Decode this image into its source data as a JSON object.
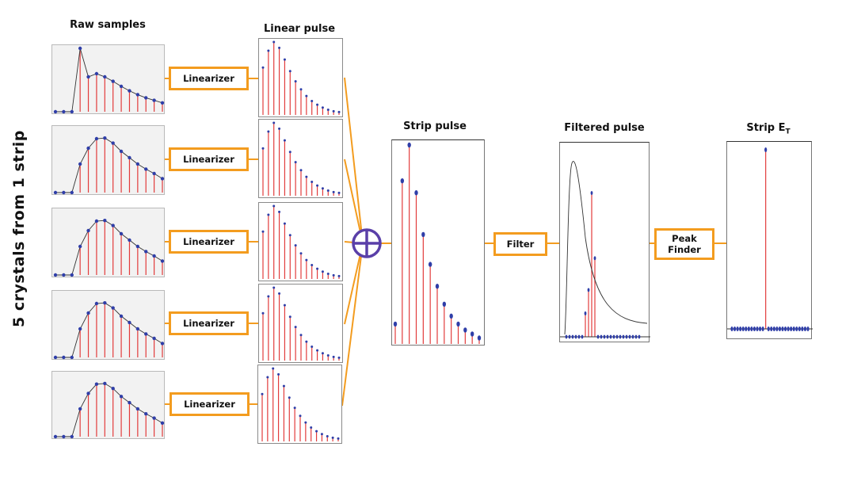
{
  "side_label": "5 crystals from 1 strip",
  "stages": {
    "raw": "Raw samples",
    "linear": "Linear pulse",
    "strip": "Strip pulse",
    "filtered": "Filtered pulse",
    "strip_et": "Strip E",
    "strip_et_sub": "T"
  },
  "blocks": {
    "linearizer": "Linearizer",
    "filter": "Filter",
    "peak_finder": "Peak\nFinder"
  },
  "colors": {
    "connector": "#f39c1f",
    "stem": "#e23b3b",
    "marker": "#2f3ea8",
    "curve": "#333333",
    "adder": "#5a3fa8"
  },
  "icons": {
    "adder": "circle-plus-icon"
  },
  "chart_data": {
    "type": "stem",
    "units": "arbitrary",
    "raw_samples": [
      [
        0,
        0,
        0,
        1,
        0.55,
        0.6,
        0.55,
        0.48,
        0.4,
        0.33,
        0.27,
        0.22,
        0.18,
        0.14
      ],
      [
        0,
        0,
        0,
        0.45,
        0.7,
        0.85,
        0.86,
        0.78,
        0.65,
        0.55,
        0.45,
        0.37,
        0.3,
        0.22
      ],
      [
        0,
        0,
        0,
        0.45,
        0.7,
        0.85,
        0.86,
        0.78,
        0.65,
        0.55,
        0.45,
        0.37,
        0.3,
        0.22
      ],
      [
        0,
        0,
        0,
        0.45,
        0.7,
        0.85,
        0.86,
        0.78,
        0.65,
        0.55,
        0.45,
        0.37,
        0.3,
        0.22
      ],
      [
        0,
        0,
        0,
        0.45,
        0.7,
        0.85,
        0.86,
        0.78,
        0.65,
        0.55,
        0.45,
        0.37,
        0.3,
        0.22
      ]
    ],
    "linear_pulse": [
      0.65,
      0.88,
      1.0,
      0.92,
      0.76,
      0.6,
      0.46,
      0.35,
      0.26,
      0.19,
      0.14,
      0.1,
      0.07,
      0.05,
      0.04
    ],
    "strip_pulse": [
      0.1,
      0.82,
      1.0,
      0.76,
      0.55,
      0.4,
      0.29,
      0.2,
      0.14,
      0.1,
      0.07,
      0.05,
      0.03
    ],
    "filtered_pulse": [
      0,
      0,
      0,
      0,
      0,
      0,
      0.14,
      0.28,
      0.86,
      0.47,
      0,
      0,
      0,
      0,
      0,
      0,
      0,
      0,
      0,
      0,
      0,
      0,
      0,
      0
    ],
    "strip_et": [
      0,
      0,
      0,
      0,
      0,
      0,
      0,
      0,
      0,
      0,
      0,
      0,
      1,
      0,
      0,
      0,
      0,
      0,
      0,
      0,
      0,
      0,
      0,
      0,
      0,
      0,
      0,
      0
    ]
  }
}
